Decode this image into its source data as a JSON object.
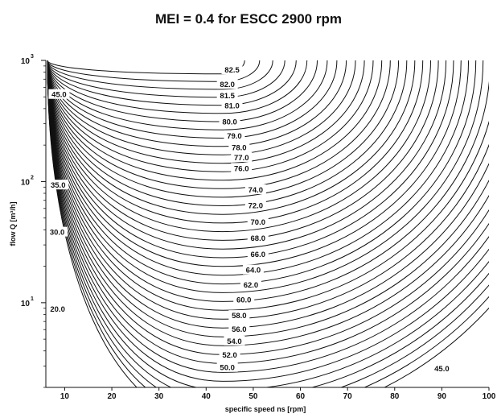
{
  "chart_data": {
    "type": "contour",
    "title": "MEI = 0.4 for ESCC 2900 rpm",
    "xlabel": "specific speed ns [rpm]",
    "ylabel": "flow Q [m³/h]",
    "xlim": [
      6,
      100
    ],
    "ylim": [
      2,
      1000
    ],
    "y_scale": "log",
    "x_ticks": [
      10,
      20,
      30,
      40,
      50,
      60,
      70,
      80,
      90,
      100
    ],
    "y_ticks": [
      {
        "base": "10",
        "exp": "1",
        "value": 10
      },
      {
        "base": "10",
        "exp": "2",
        "value": 100
      },
      {
        "base": "10",
        "exp": "3",
        "value": 1000
      }
    ],
    "optimum": {
      "x": 43.5,
      "q": 1000
    },
    "contour_labels": [
      {
        "text": "82.5",
        "x": 45.5,
        "q": 830
      },
      {
        "text": "82.0",
        "x": 44.5,
        "q": 630
      },
      {
        "text": "81.5",
        "x": 44.5,
        "q": 510
      },
      {
        "text": "81.0",
        "x": 45.5,
        "q": 420
      },
      {
        "text": "80.0",
        "x": 45.0,
        "q": 310
      },
      {
        "text": "79.0",
        "x": 46.0,
        "q": 238
      },
      {
        "text": "78.0",
        "x": 47.0,
        "q": 190
      },
      {
        "text": "77.0",
        "x": 47.5,
        "q": 157
      },
      {
        "text": "76.0",
        "x": 47.5,
        "q": 128
      },
      {
        "text": "74.0",
        "x": 50.5,
        "q": 85
      },
      {
        "text": "72.0",
        "x": 50.5,
        "q": 63
      },
      {
        "text": "70.0",
        "x": 51.0,
        "q": 46
      },
      {
        "text": "68.0",
        "x": 51.0,
        "q": 34
      },
      {
        "text": "66.0",
        "x": 51.0,
        "q": 25
      },
      {
        "text": "64.0",
        "x": 50.0,
        "q": 18.5
      },
      {
        "text": "62.0",
        "x": 49.5,
        "q": 14
      },
      {
        "text": "60.0",
        "x": 48.0,
        "q": 10.5
      },
      {
        "text": "58.0",
        "x": 47.0,
        "q": 7.8
      },
      {
        "text": "56.0",
        "x": 47.0,
        "q": 6.0
      },
      {
        "text": "54.0",
        "x": 46.0,
        "q": 4.8
      },
      {
        "text": "52.0",
        "x": 45.0,
        "q": 3.7
      },
      {
        "text": "50.0",
        "x": 44.5,
        "q": 2.9
      },
      {
        "text": "45.0",
        "x": 8.8,
        "q": 520
      },
      {
        "text": "35.0",
        "x": 8.6,
        "q": 93
      },
      {
        "text": "30.0",
        "x": 8.4,
        "q": 38
      },
      {
        "text": "20.0",
        "x": 8.5,
        "q": 8.8
      },
      {
        "text": "45.0",
        "x": 90.0,
        "q": 2.85
      }
    ]
  }
}
